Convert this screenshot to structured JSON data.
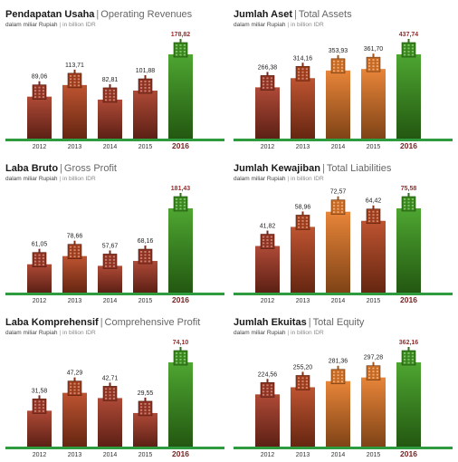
{
  "colors": {
    "baseline": "#2e9b3f",
    "highlight_bar": "#3f9e1f",
    "highlight_value": "#9b2b2b",
    "highlight_year": "#7a1e1e"
  },
  "chart_data": [
    {
      "type": "bar",
      "title_id": "Pendapatan Usaha",
      "title_en": "Operating Revenues",
      "unit_id": "dalam miliar Rupiah",
      "unit_en": "in billion IDR",
      "categories": [
        "2012",
        "2013",
        "2014",
        "2015",
        "2016"
      ],
      "values": [
        89.06,
        113.71,
        82.81,
        101.88,
        178.82
      ],
      "value_labels": [
        "89,06",
        "113,71",
        "82,81",
        "101,88",
        "178,82"
      ],
      "bar_colors": [
        "#a83a26",
        "#b8451f",
        "#a83a26",
        "#a83a26",
        "#3f9e1f"
      ],
      "highlight_index": 4
    },
    {
      "type": "bar",
      "title_id": "Jumlah Aset",
      "title_en": "Total Assets",
      "unit_id": "dalam miliar Rupiah",
      "unit_en": "in billion IDR",
      "categories": [
        "2012",
        "2013",
        "2014",
        "2015",
        "2016"
      ],
      "values": [
        266.38,
        314.16,
        353.93,
        361.7,
        437.74
      ],
      "value_labels": [
        "266,38",
        "314,16",
        "353,93",
        "361,70",
        "437,74"
      ],
      "bar_colors": [
        "#a83a26",
        "#b8451f",
        "#e67a28",
        "#e67a28",
        "#3f9e1f"
      ],
      "highlight_index": 4
    },
    {
      "type": "bar",
      "title_id": "Laba Bruto",
      "title_en": "Gross Profit",
      "unit_id": "dalam miliar Rupiah",
      "unit_en": "in billion IDR",
      "categories": [
        "2012",
        "2013",
        "2014",
        "2015",
        "2016"
      ],
      "values": [
        61.05,
        78.66,
        57.67,
        68.16,
        181.43
      ],
      "value_labels": [
        "61,05",
        "78,66",
        "57,67",
        "68,16",
        "181,43"
      ],
      "bar_colors": [
        "#a83a26",
        "#b8451f",
        "#a83a26",
        "#a83a26",
        "#3f9e1f"
      ],
      "highlight_index": 4
    },
    {
      "type": "bar",
      "title_id": "Jumlah Kewajiban",
      "title_en": "Total Liabilities",
      "unit_id": "dalam miliar Rupiah",
      "unit_en": "in billion IDR",
      "categories": [
        "2012",
        "2013",
        "2014",
        "2015",
        "2016"
      ],
      "values": [
        41.82,
        58.96,
        72.57,
        64.42,
        75.58
      ],
      "value_labels": [
        "41,82",
        "58,96",
        "72,57",
        "64,42",
        "75,58"
      ],
      "bar_colors": [
        "#a83a26",
        "#b8451f",
        "#e67a28",
        "#b8451f",
        "#3f9e1f"
      ],
      "highlight_index": 4
    },
    {
      "type": "bar",
      "title_id": "Laba Komprehensif",
      "title_en": "Comprehensive Profit",
      "unit_id": "dalam miliar Rupiah",
      "unit_en": "in billion IDR",
      "categories": [
        "2012",
        "2013",
        "2014",
        "2015",
        "2016"
      ],
      "values": [
        31.58,
        47.29,
        42.71,
        29.55,
        74.1
      ],
      "value_labels": [
        "31,58",
        "47,29",
        "42,71",
        "29,55",
        "74,10"
      ],
      "bar_colors": [
        "#a83a26",
        "#b8451f",
        "#a83a26",
        "#a83a26",
        "#3f9e1f"
      ],
      "highlight_index": 4
    },
    {
      "type": "bar",
      "title_id": "Jumlah Ekuitas",
      "title_en": "Total Equity",
      "unit_id": "dalam miliar Rupiah",
      "unit_en": "in billion IDR",
      "categories": [
        "2012",
        "2013",
        "2014",
        "2015",
        "2016"
      ],
      "values": [
        224.56,
        255.2,
        281.36,
        297.28,
        362.16
      ],
      "value_labels": [
        "224,56",
        "255,20",
        "281,36",
        "297,28",
        "362,16"
      ],
      "bar_colors": [
        "#a83a26",
        "#b8451f",
        "#e67a28",
        "#e67a28",
        "#3f9e1f"
      ],
      "highlight_index": 4
    }
  ]
}
